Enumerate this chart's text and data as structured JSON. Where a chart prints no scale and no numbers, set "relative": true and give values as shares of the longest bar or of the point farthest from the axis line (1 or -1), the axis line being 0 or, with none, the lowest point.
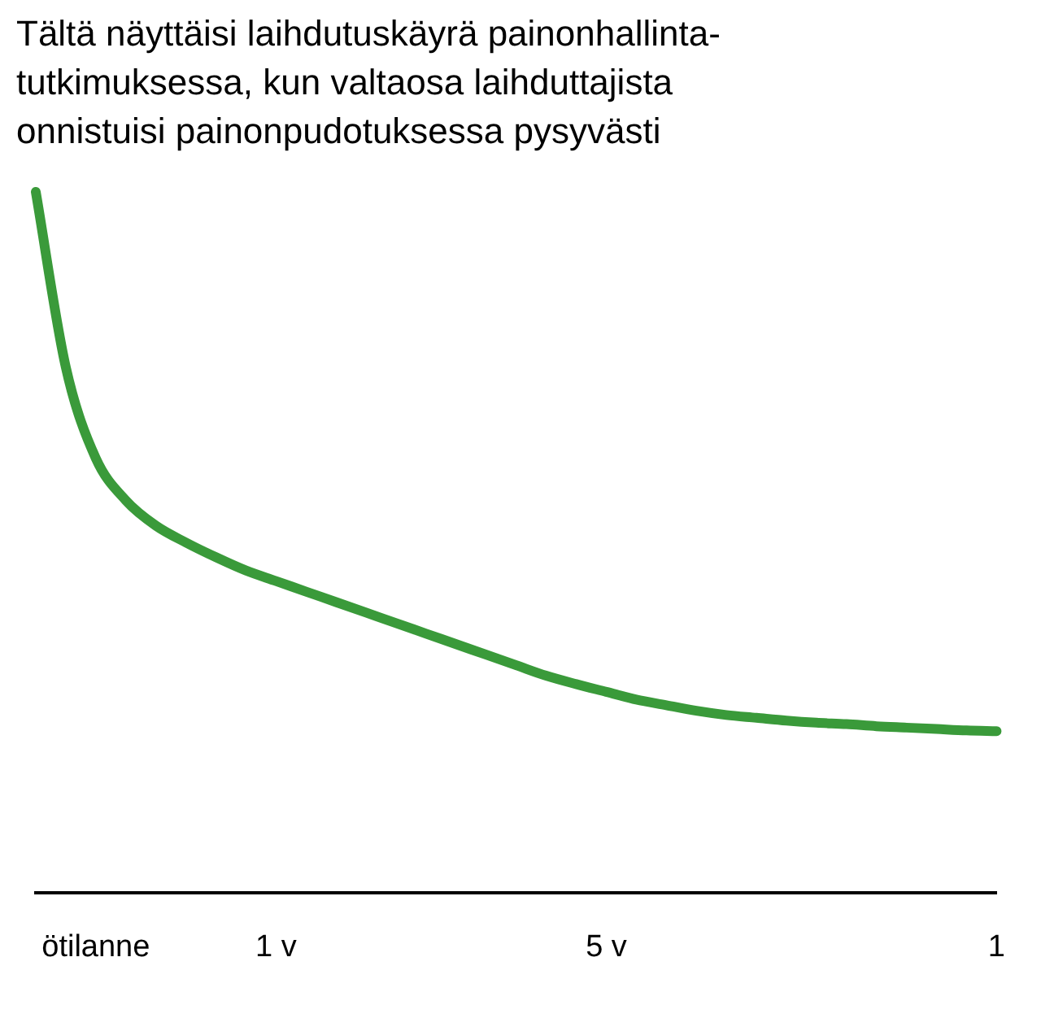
{
  "chart_data": {
    "type": "line",
    "title": "Tältä näyttäisi laihdutuskäyrä painonhallinta-\ntutkimuksessa, kun valtaosa laihduttajista\nonnistuisi painonpudotuksessa pysyvästi",
    "relative": true,
    "tick_labels": "x",
    "marker": "none",
    "color": "#3a9a3a",
    "categories": [
      null,
      null,
      "ötilanne",
      null,
      null,
      null,
      null,
      null,
      "1 v",
      null,
      null,
      null,
      null,
      null,
      null,
      null,
      null,
      null,
      null,
      "5 v",
      null,
      null,
      null,
      null,
      null,
      null,
      null,
      null,
      null,
      null,
      null,
      null,
      "1"
    ],
    "values": [
      1,
      0.75,
      0.62,
      0.56,
      0.524,
      0.5,
      0.479,
      0.46,
      0.445,
      0.43,
      0.415,
      0.4,
      0.385,
      0.37,
      0.355,
      0.34,
      0.325,
      0.31,
      0.298,
      0.287,
      0.276,
      0.268,
      0.26,
      0.254,
      0.25,
      0.246,
      0.243,
      0.241,
      0.238,
      0.236,
      0.234,
      0.232,
      0.231
    ]
  }
}
